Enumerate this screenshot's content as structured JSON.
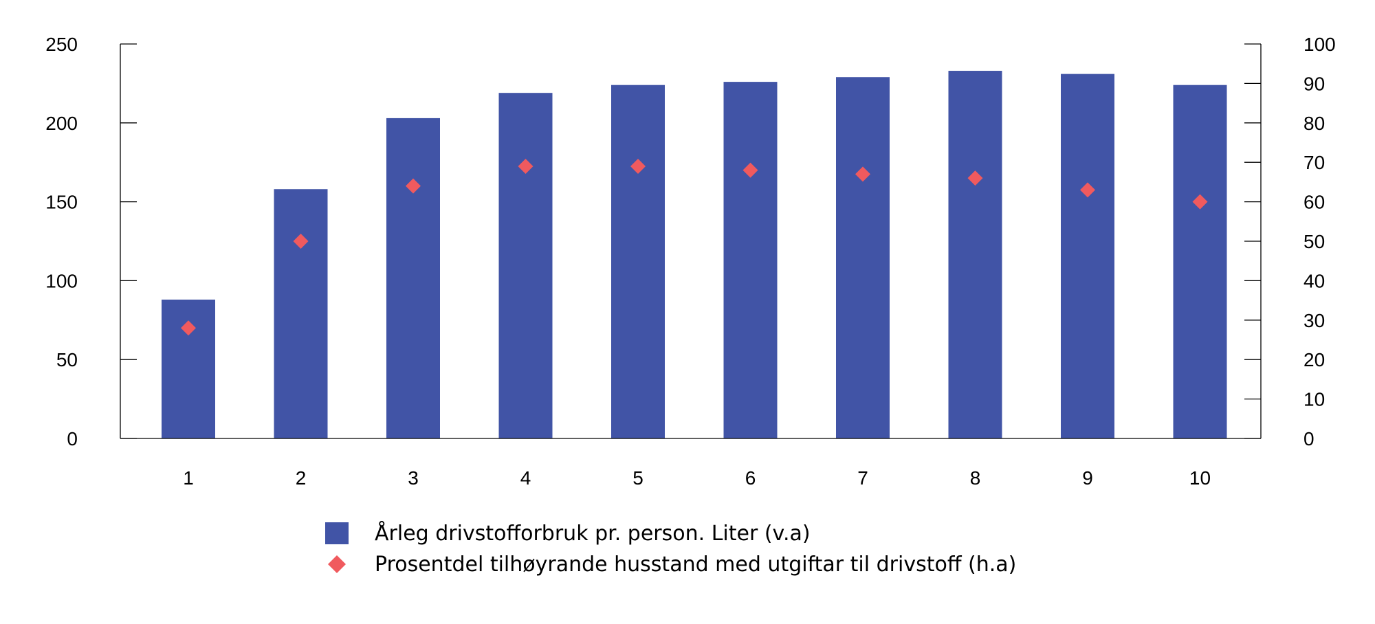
{
  "chart_data": {
    "type": "bar",
    "categories": [
      "1",
      "2",
      "3",
      "4",
      "5",
      "6",
      "7",
      "8",
      "9",
      "10"
    ],
    "series": [
      {
        "name": "Årleg drivstofforbruk pr. person. Liter (v.a)",
        "type": "bar",
        "axis": "left",
        "color": "#4154a6",
        "values": [
          88,
          158,
          203,
          219,
          224,
          226,
          229,
          233,
          231,
          224
        ]
      },
      {
        "name": "Prosentdel tilhøyrande husstand med utgiftar til drivstoff (h.a)",
        "type": "scatter",
        "marker": "diamond",
        "axis": "right",
        "color": "#f05a5e",
        "values": [
          28,
          50,
          64,
          69,
          69,
          68,
          67,
          66,
          63,
          60
        ]
      }
    ],
    "y_left": {
      "ylim": [
        0,
        250
      ],
      "ticks": [
        "0",
        "50",
        "100",
        "150",
        "200",
        "250"
      ]
    },
    "y_right": {
      "ylim": [
        0,
        100
      ],
      "ticks": [
        "0",
        "10",
        "20",
        "30",
        "40",
        "50",
        "60",
        "70",
        "80",
        "90",
        "100"
      ]
    },
    "grid": false,
    "legend_position": "bottom",
    "title": "",
    "xlabel": "",
    "ylabel": ""
  }
}
